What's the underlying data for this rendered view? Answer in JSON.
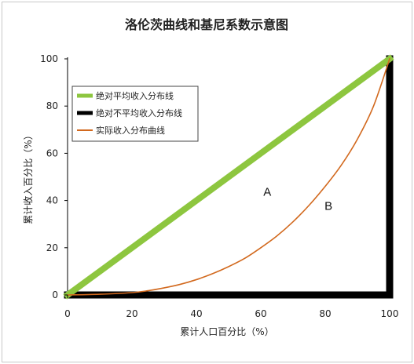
{
  "chart_data": {
    "type": "line",
    "title": "洛伦茨曲线和基尼系数示意图",
    "xlabel": "累计人口百分比（%）",
    "ylabel": "累计收入百分比（%）",
    "xlim": [
      0,
      100
    ],
    "ylim": [
      0,
      100
    ],
    "x_ticks": [
      "0",
      "20",
      "40",
      "60",
      "80",
      "100"
    ],
    "y_ticks": [
      "0",
      "20",
      "40",
      "60",
      "80",
      "100"
    ],
    "grid": false,
    "legend_position": "top-left",
    "series": [
      {
        "name": "绝对平均收入分布线",
        "color": "#8dc63f",
        "x": [
          0,
          100
        ],
        "y": [
          0,
          100
        ]
      },
      {
        "name": "绝对不平均收入分布线",
        "color": "#000000",
        "x": [
          0,
          100,
          100
        ],
        "y": [
          0,
          0,
          100
        ]
      },
      {
        "name": "实际收入分布曲线",
        "color": "#d2691e",
        "x": [
          0,
          10,
          20,
          25,
          30,
          35,
          40,
          45,
          50,
          55,
          60,
          65,
          70,
          75,
          80,
          85,
          90,
          95,
          100
        ],
        "y": [
          0,
          0.3,
          1,
          1.8,
          3,
          4.5,
          6.5,
          9,
          12,
          15.5,
          20,
          25,
          31,
          38,
          46,
          55,
          66,
          80,
          100
        ]
      }
    ],
    "annotations": [
      {
        "text": "A",
        "x": 62,
        "y": 42
      },
      {
        "text": "B",
        "x": 81,
        "y": 36
      }
    ]
  }
}
